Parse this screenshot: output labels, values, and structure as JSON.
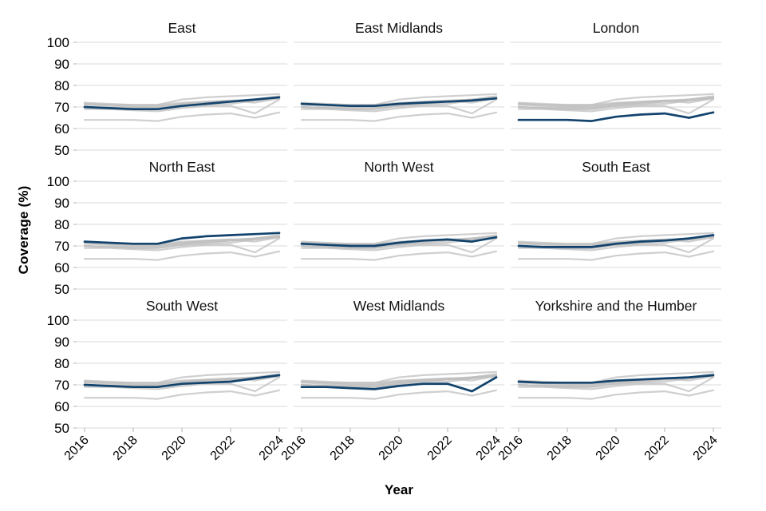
{
  "chart_data": {
    "type": "line",
    "title": "",
    "xlabel": "Year",
    "ylabel": "Coverage (%)",
    "x": [
      2016,
      2017,
      2018,
      2019,
      2020,
      2021,
      2022,
      2023,
      2024
    ],
    "x_ticks": [
      2016,
      2018,
      2020,
      2022,
      2024
    ],
    "ylim": [
      50,
      100
    ],
    "y_ticks": [
      100,
      90,
      80,
      70,
      60,
      50
    ],
    "grid": "horizontal-only",
    "legend": "none",
    "facets": [
      "East",
      "East Midlands",
      "London",
      "North East",
      "North West",
      "South East",
      "South West",
      "West Midlands",
      "Yorkshire and the Humber"
    ],
    "facet_note": "each facet highlights its own region; all other regions shown in grey",
    "series": [
      {
        "name": "East",
        "values": [
          70,
          69.5,
          69,
          69,
          70.5,
          71.5,
          72.5,
          73.5,
          74.5
        ]
      },
      {
        "name": "East Midlands",
        "values": [
          71.5,
          71,
          70.5,
          70.5,
          71.5,
          72,
          72.5,
          73,
          74
        ]
      },
      {
        "name": "London",
        "values": [
          64,
          64,
          64,
          63.5,
          65.5,
          66.5,
          67,
          65,
          67.5
        ]
      },
      {
        "name": "North East",
        "values": [
          72,
          71.5,
          71,
          71,
          73.5,
          74.5,
          75,
          75.5,
          76
        ]
      },
      {
        "name": "North West",
        "values": [
          71,
          70.5,
          70,
          70,
          71.5,
          72.5,
          73,
          72,
          74
        ]
      },
      {
        "name": "South East",
        "values": [
          70,
          69.5,
          69.5,
          69.5,
          71,
          72,
          72.5,
          73.5,
          75
        ]
      },
      {
        "name": "South West",
        "values": [
          70,
          69.5,
          69,
          69,
          70.5,
          71,
          71.5,
          73,
          74.5
        ]
      },
      {
        "name": "West Midlands",
        "values": [
          69,
          69,
          68.5,
          68,
          69.5,
          70.5,
          70.5,
          67,
          73.5
        ]
      },
      {
        "name": "Yorkshire and the Humber",
        "values": [
          71.5,
          71,
          71,
          71,
          72,
          72.5,
          73,
          73.5,
          74.5
        ]
      }
    ],
    "colors": {
      "highlight": "#12436D",
      "other": "#BFBFBF",
      "gridline": "#D8D8D8",
      "tick": "#B3B3B3",
      "text": "#000000"
    }
  }
}
